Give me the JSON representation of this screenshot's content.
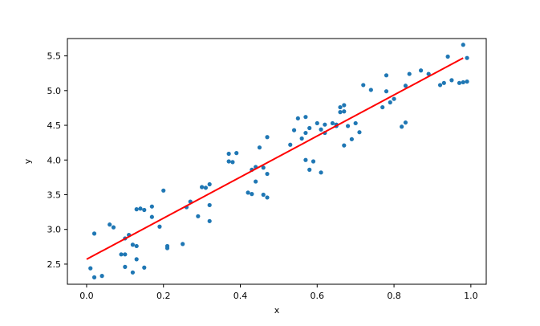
{
  "chart_data": {
    "type": "scatter",
    "title": "",
    "xlabel": "x",
    "ylabel": "y",
    "xlim": [
      -0.05,
      1.04
    ],
    "ylim": [
      2.21,
      5.75
    ],
    "xticks": [
      0.0,
      0.2,
      0.4,
      0.6,
      0.8,
      1.0
    ],
    "xtick_labels": [
      "0.0",
      "0.2",
      "0.4",
      "0.6",
      "0.8",
      "1.0"
    ],
    "yticks": [
      2.5,
      3.0,
      3.5,
      4.0,
      4.5,
      5.0,
      5.5
    ],
    "ytick_labels": [
      "2.5",
      "3.0",
      "3.5",
      "4.0",
      "4.5",
      "5.0",
      "5.5"
    ],
    "grid": false,
    "legend": "none",
    "colors": {
      "points": "#1f77b4",
      "fit_line": "#ff0000"
    },
    "series": [
      {
        "kind": "scatter",
        "points": [
          [
            0.01,
            2.44
          ],
          [
            0.02,
            2.31
          ],
          [
            0.02,
            2.94
          ],
          [
            0.04,
            2.33
          ],
          [
            0.06,
            3.07
          ],
          [
            0.07,
            3.03
          ],
          [
            0.09,
            2.64
          ],
          [
            0.1,
            2.64
          ],
          [
            0.1,
            2.87
          ],
          [
            0.1,
            2.46
          ],
          [
            0.11,
            2.92
          ],
          [
            0.12,
            2.78
          ],
          [
            0.12,
            2.38
          ],
          [
            0.13,
            2.76
          ],
          [
            0.13,
            3.29
          ],
          [
            0.13,
            2.57
          ],
          [
            0.14,
            3.3
          ],
          [
            0.15,
            3.28
          ],
          [
            0.15,
            2.45
          ],
          [
            0.17,
            3.18
          ],
          [
            0.17,
            3.33
          ],
          [
            0.19,
            3.04
          ],
          [
            0.2,
            3.56
          ],
          [
            0.21,
            2.76
          ],
          [
            0.21,
            2.73
          ],
          [
            0.25,
            2.79
          ],
          [
            0.26,
            3.32
          ],
          [
            0.27,
            3.4
          ],
          [
            0.29,
            3.19
          ],
          [
            0.3,
            3.61
          ],
          [
            0.31,
            3.6
          ],
          [
            0.32,
            3.65
          ],
          [
            0.32,
            3.35
          ],
          [
            0.32,
            3.12
          ],
          [
            0.37,
            3.98
          ],
          [
            0.37,
            4.09
          ],
          [
            0.38,
            3.97
          ],
          [
            0.39,
            4.1
          ],
          [
            0.42,
            3.53
          ],
          [
            0.43,
            3.86
          ],
          [
            0.43,
            3.51
          ],
          [
            0.44,
            3.9
          ],
          [
            0.44,
            3.69
          ],
          [
            0.45,
            4.18
          ],
          [
            0.46,
            3.89
          ],
          [
            0.46,
            3.5
          ],
          [
            0.47,
            4.33
          ],
          [
            0.47,
            3.8
          ],
          [
            0.47,
            3.46
          ],
          [
            0.53,
            4.22
          ],
          [
            0.54,
            4.43
          ],
          [
            0.55,
            4.6
          ],
          [
            0.56,
            4.31
          ],
          [
            0.57,
            4.62
          ],
          [
            0.57,
            4.39
          ],
          [
            0.57,
            4.0
          ],
          [
            0.58,
            4.46
          ],
          [
            0.58,
            3.86
          ],
          [
            0.59,
            3.98
          ],
          [
            0.6,
            4.53
          ],
          [
            0.61,
            3.82
          ],
          [
            0.61,
            4.44
          ],
          [
            0.62,
            4.51
          ],
          [
            0.62,
            4.39
          ],
          [
            0.64,
            4.53
          ],
          [
            0.65,
            4.51
          ],
          [
            0.65,
            4.49
          ],
          [
            0.66,
            4.76
          ],
          [
            0.66,
            4.69
          ],
          [
            0.67,
            4.21
          ],
          [
            0.67,
            4.79
          ],
          [
            0.67,
            4.7
          ],
          [
            0.68,
            4.49
          ],
          [
            0.69,
            4.3
          ],
          [
            0.7,
            4.53
          ],
          [
            0.71,
            4.4
          ],
          [
            0.72,
            5.08
          ],
          [
            0.74,
            5.01
          ],
          [
            0.77,
            4.76
          ],
          [
            0.78,
            5.22
          ],
          [
            0.78,
            4.99
          ],
          [
            0.79,
            4.83
          ],
          [
            0.8,
            4.88
          ],
          [
            0.82,
            4.48
          ],
          [
            0.83,
            4.54
          ],
          [
            0.83,
            5.07
          ],
          [
            0.84,
            5.24
          ],
          [
            0.87,
            5.29
          ],
          [
            0.89,
            5.24
          ],
          [
            0.92,
            5.08
          ],
          [
            0.93,
            5.11
          ],
          [
            0.94,
            5.49
          ],
          [
            0.95,
            5.15
          ],
          [
            0.97,
            5.11
          ],
          [
            0.98,
            5.12
          ],
          [
            0.98,
            5.66
          ],
          [
            0.99,
            5.13
          ],
          [
            0.99,
            5.47
          ]
        ]
      },
      {
        "kind": "line",
        "points": [
          [
            0.0,
            2.57
          ],
          [
            0.98,
            5.47
          ]
        ]
      }
    ]
  }
}
